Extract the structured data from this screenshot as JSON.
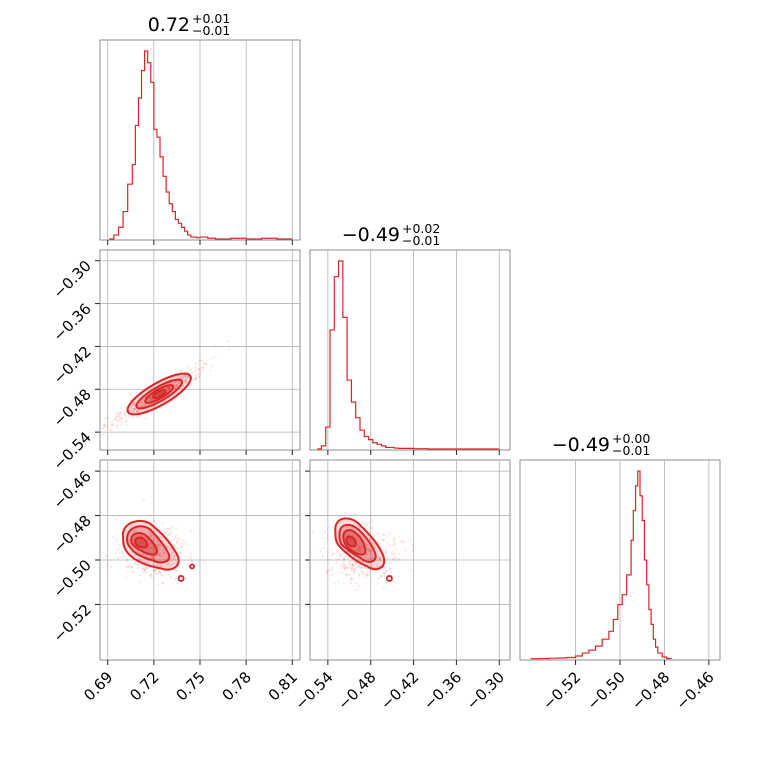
{
  "color": "#d62728",
  "chart_data": {
    "type": "corner",
    "parameters": [
      {
        "title_value": "0.72",
        "title_plus": "+0.01",
        "title_minus": "−0.01",
        "range": [
          0.685,
          0.815
        ]
      },
      {
        "title_value": "−0.49",
        "title_plus": "+0.02",
        "title_minus": "−0.01",
        "range": [
          -0.565,
          -0.285
        ]
      },
      {
        "title_value": "−0.49",
        "title_plus": "+0.00",
        "title_minus": "−0.01",
        "range": [
          -0.545,
          -0.455
        ]
      }
    ],
    "ticks": [
      {
        "values": [
          0.69,
          0.72,
          0.75,
          0.78,
          0.81
        ],
        "labels": [
          "0.69",
          "0.72",
          "0.75",
          "0.78",
          "0.81"
        ]
      },
      {
        "values": [
          -0.54,
          -0.48,
          -0.42,
          -0.36,
          -0.3
        ],
        "labels": [
          "−0.54",
          "−0.48",
          "−0.42",
          "−0.36",
          "−0.30"
        ]
      },
      {
        "values": [
          -0.52,
          -0.5,
          -0.48,
          -0.46
        ],
        "labels": [
          "−0.52",
          "−0.50",
          "−0.48",
          "−0.46"
        ]
      }
    ],
    "row_tick_labels": {
      "row1": [
        "−0.30",
        "−0.36",
        "−0.42",
        "−0.48",
        "−0.54"
      ],
      "row2": [
        "−0.46",
        "−0.48",
        "−0.50",
        "−0.52"
      ]
    },
    "histograms": [
      {
        "param": 0,
        "bin_edges": [
          0.691,
          0.694,
          0.697,
          0.7,
          0.703,
          0.706,
          0.708,
          0.71,
          0.712,
          0.714,
          0.716,
          0.718,
          0.72,
          0.722,
          0.724,
          0.726,
          0.728,
          0.73,
          0.732,
          0.734,
          0.736,
          0.738,
          0.74,
          0.742,
          0.744,
          0.746,
          0.748,
          0.75,
          0.755,
          0.76,
          0.77,
          0.78,
          0.79,
          0.8,
          0.81
        ],
        "counts": [
          0,
          1,
          3,
          7,
          14,
          19,
          29,
          36,
          43,
          48,
          45,
          40,
          28,
          26,
          21,
          16,
          12,
          9,
          7,
          5,
          4,
          3,
          2,
          1,
          0.5,
          0.5,
          0.3,
          0.5,
          0.2,
          0,
          0.2,
          0,
          0.2,
          0
        ]
      },
      {
        "param": 1,
        "bin_edges": [
          -0.555,
          -0.549,
          -0.543,
          -0.537,
          -0.531,
          -0.525,
          -0.519,
          -0.513,
          -0.507,
          -0.501,
          -0.495,
          -0.489,
          -0.483,
          -0.477,
          -0.471,
          -0.465,
          -0.459,
          -0.453,
          -0.447,
          -0.441,
          -0.435,
          -0.42,
          -0.4,
          -0.38,
          -0.36,
          -0.34,
          -0.32,
          -0.3
        ],
        "counts": [
          0,
          1,
          7,
          38,
          55,
          60,
          42,
          22,
          15,
          10,
          6,
          4,
          3,
          2,
          1.5,
          1,
          0.5,
          0.5,
          0.3,
          0.2,
          0.2,
          0.1,
          0,
          0,
          0,
          0,
          0
        ]
      },
      {
        "param": 2,
        "bin_edges": [
          -0.54,
          -0.536,
          -0.532,
          -0.528,
          -0.524,
          -0.52,
          -0.517,
          -0.514,
          -0.511,
          -0.508,
          -0.505,
          -0.503,
          -0.501,
          -0.499,
          -0.497,
          -0.495,
          -0.494,
          -0.493,
          -0.492,
          -0.491,
          -0.49,
          -0.489,
          -0.488,
          -0.487,
          -0.486,
          -0.485,
          -0.484,
          -0.483,
          -0.481,
          -0.479,
          -0.477
        ],
        "counts": [
          0.3,
          0.5,
          0.8,
          1,
          1.5,
          3,
          6,
          9,
          13,
          20,
          28,
          40,
          55,
          65,
          85,
          120,
          150,
          175,
          190,
          165,
          140,
          100,
          75,
          50,
          35,
          20,
          12,
          6,
          2,
          0.5
        ]
      }
    ],
    "scatter_2d": [
      {
        "x_param": 0,
        "y_param": 1,
        "center": [
          0.717,
          -0.495
        ],
        "correlation": "positive",
        "contour_levels": 4
      },
      {
        "x_param": 0,
        "y_param": 2,
        "center": [
          0.713,
          -0.493
        ],
        "contour_levels": 4
      },
      {
        "x_param": 1,
        "y_param": 2,
        "center": [
          -0.507,
          -0.493
        ],
        "contour_levels": 4
      }
    ]
  }
}
